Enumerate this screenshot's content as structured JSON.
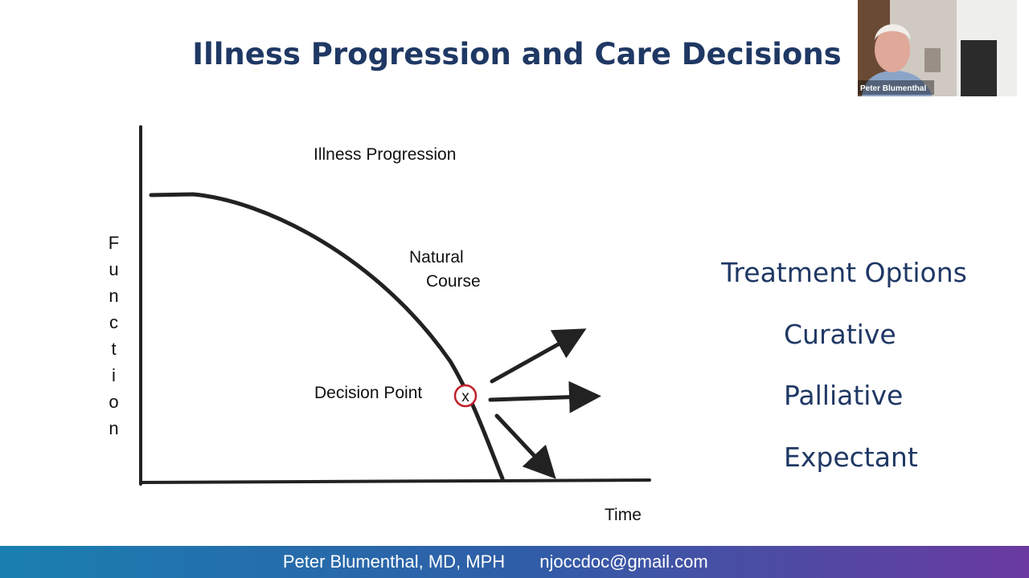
{
  "slide": {
    "title": "Illness Progression and Care Decisions",
    "diagram": {
      "heading": "Illness Progression",
      "y_axis_label": "Function",
      "x_axis_label": "Time",
      "curve_label": [
        "Natural",
        "Course"
      ],
      "decision_label": "Decision Point",
      "decision_marker": "x"
    },
    "options": {
      "heading": "Treatment Options",
      "items": [
        "Curative",
        "Palliative",
        "Expectant"
      ]
    },
    "footer": {
      "presenter": "Peter Blumenthal, MD, MPH",
      "email": "njoccdoc@gmail.com"
    }
  },
  "video": {
    "participant": "Peter Blumenthal"
  }
}
